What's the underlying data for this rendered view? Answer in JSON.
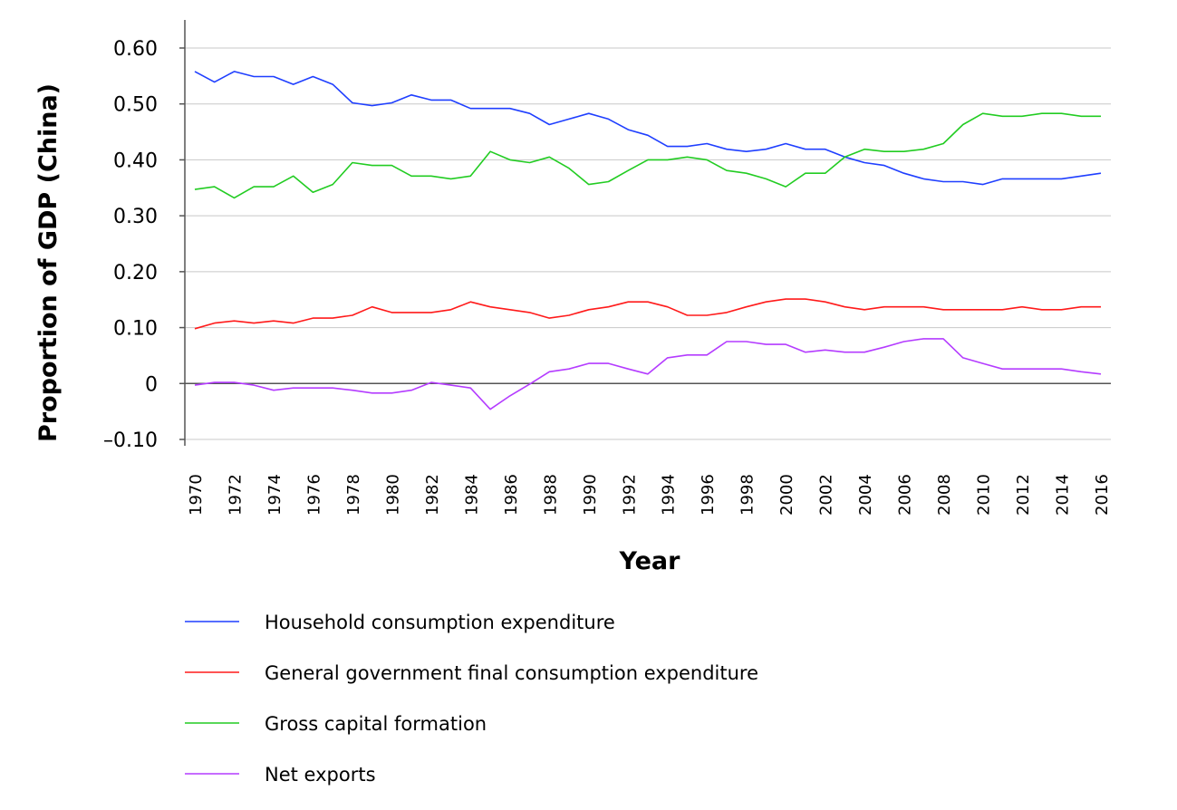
{
  "chart_data": {
    "type": "line",
    "title": "",
    "xlabel": "Year",
    "ylabel": "Proportion of GDP (China)",
    "xlim": [
      1970,
      2016
    ],
    "ylim": [
      -0.1,
      0.65
    ],
    "yticks": [
      {
        "value": 0.6,
        "label": "0.60"
      },
      {
        "value": 0.5,
        "label": "0.50"
      },
      {
        "value": 0.4,
        "label": "0.40"
      },
      {
        "value": 0.3,
        "label": "0.30"
      },
      {
        "value": 0.2,
        "label": "0.20"
      },
      {
        "value": 0.1,
        "label": "0.10"
      },
      {
        "value": 0,
        "label": "0"
      },
      {
        "value": -0.1,
        "label": "–0.10"
      }
    ],
    "xticks": [
      "1970",
      "1972",
      "1974",
      "1976",
      "1978",
      "1980",
      "1982",
      "1984",
      "1986",
      "1988",
      "1990",
      "1992",
      "1994",
      "1996",
      "1998",
      "2000",
      "2002",
      "2004",
      "2006",
      "2008",
      "2010",
      "2012",
      "2014",
      "2016"
    ],
    "grid": true,
    "legend_position": "bottom",
    "x": [
      1970,
      1971,
      1972,
      1973,
      1974,
      1975,
      1976,
      1977,
      1978,
      1979,
      1980,
      1981,
      1982,
      1983,
      1984,
      1985,
      1986,
      1987,
      1988,
      1989,
      1990,
      1991,
      1992,
      1993,
      1994,
      1995,
      1996,
      1997,
      1998,
      1999,
      2000,
      2001,
      2002,
      2003,
      2004,
      2005,
      2006,
      2007,
      2008,
      2009,
      2010,
      2011,
      2012,
      2013,
      2014,
      2015,
      2016
    ],
    "series": [
      {
        "name": "Household consumption expenditure",
        "color": "#1f3fff",
        "values": [
          0.558,
          0.539,
          0.558,
          0.549,
          0.549,
          0.535,
          0.549,
          0.535,
          0.502,
          0.497,
          0.502,
          0.516,
          0.507,
          0.507,
          0.492,
          0.492,
          0.492,
          0.483,
          0.463,
          0.473,
          0.483,
          0.473,
          0.454,
          0.444,
          0.424,
          0.424,
          0.429,
          0.419,
          0.415,
          0.419,
          0.429,
          0.419,
          0.419,
          0.405,
          0.395,
          0.39,
          0.376,
          0.366,
          0.361,
          0.361,
          0.356,
          0.366,
          0.366,
          0.366,
          0.366,
          0.371,
          0.376
        ]
      },
      {
        "name": "General government final consumption expenditure",
        "color": "#ff1a1a",
        "values": [
          0.098,
          0.108,
          0.112,
          0.108,
          0.112,
          0.108,
          0.117,
          0.117,
          0.122,
          0.137,
          0.127,
          0.127,
          0.127,
          0.132,
          0.146,
          0.137,
          0.132,
          0.127,
          0.117,
          0.122,
          0.132,
          0.137,
          0.146,
          0.146,
          0.137,
          0.122,
          0.122,
          0.127,
          0.137,
          0.146,
          0.151,
          0.151,
          0.146,
          0.137,
          0.132,
          0.137,
          0.137,
          0.137,
          0.132,
          0.132,
          0.132,
          0.132,
          0.137,
          0.132,
          0.132,
          0.137,
          0.137
        ]
      },
      {
        "name": "Gross capital formation",
        "color": "#22cc22",
        "values": [
          0.347,
          0.352,
          0.332,
          0.352,
          0.352,
          0.371,
          0.342,
          0.356,
          0.395,
          0.39,
          0.39,
          0.371,
          0.371,
          0.366,
          0.371,
          0.415,
          0.4,
          0.395,
          0.405,
          0.385,
          0.356,
          0.361,
          0.381,
          0.4,
          0.4,
          0.405,
          0.4,
          0.381,
          0.376,
          0.366,
          0.352,
          0.376,
          0.376,
          0.405,
          0.419,
          0.415,
          0.415,
          0.419,
          0.429,
          0.463,
          0.483,
          0.478,
          0.478,
          0.483,
          0.483,
          0.478,
          0.478
        ]
      },
      {
        "name": "Net exports",
        "color": "#b43cff",
        "values": [
          -0.003,
          0.002,
          0.002,
          -0.003,
          -0.012,
          -0.008,
          -0.008,
          -0.008,
          -0.012,
          -0.017,
          -0.017,
          -0.012,
          0.002,
          -0.003,
          -0.008,
          -0.046,
          -0.022,
          -0.001,
          0.021,
          0.026,
          0.036,
          0.036,
          0.026,
          0.017,
          0.046,
          0.051,
          0.051,
          0.075,
          0.075,
          0.07,
          0.07,
          0.056,
          0.06,
          0.056,
          0.056,
          0.065,
          0.075,
          0.08,
          0.08,
          0.046,
          0.036,
          0.026,
          0.026,
          0.026,
          0.026,
          0.021,
          0.017
        ]
      }
    ]
  }
}
